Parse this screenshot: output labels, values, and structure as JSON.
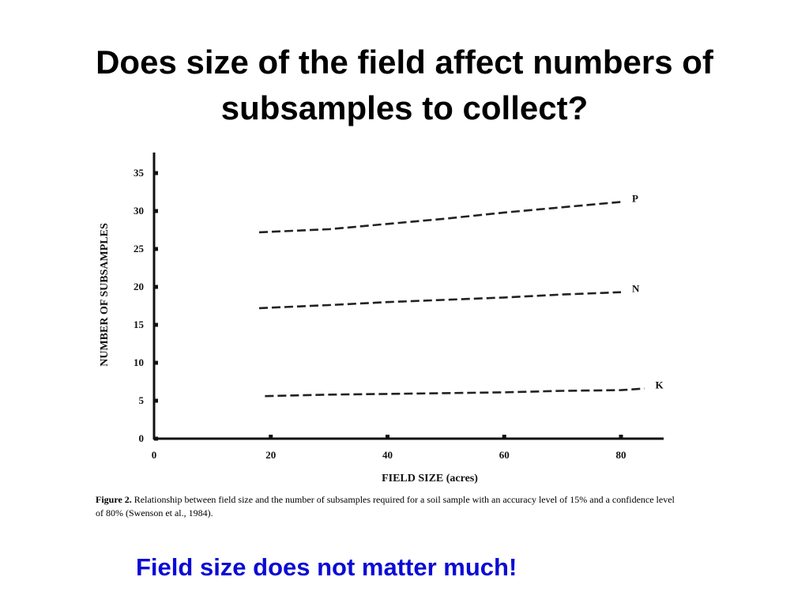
{
  "slide": {
    "title_line1": "Does size of the field affect numbers of",
    "title_line2": "subsamples to collect?",
    "caption_label": "Figure 2.",
    "caption_text": "Relationship between field size and the number of subsamples required for a soil sample with an accuracy level of 15% and a confidence level of 80% (Swenson et al., 1984).",
    "takeaway": "Field size does not matter much!",
    "takeaway_color": "#0b0bd6"
  },
  "chart_data": {
    "type": "line",
    "xlabel": "FIELD SIZE (acres)",
    "ylabel": "NUMBER OF SUBSAMPLES",
    "xlim": [
      0,
      88
    ],
    "ylim": [
      0,
      36
    ],
    "x_ticks": [
      0,
      20,
      40,
      60,
      80
    ],
    "y_ticks": [
      0,
      5,
      10,
      15,
      20,
      25,
      30,
      35
    ],
    "line_style": "dashed",
    "grid": false,
    "series": [
      {
        "name": "P",
        "x": [
          18,
          30,
          40,
          50,
          60,
          70,
          80
        ],
        "y": [
          27.2,
          27.6,
          28.3,
          29.0,
          29.8,
          30.5,
          31.2
        ]
      },
      {
        "name": "N",
        "x": [
          18,
          30,
          40,
          50,
          60,
          70,
          80
        ],
        "y": [
          17.2,
          17.6,
          18.0,
          18.3,
          18.6,
          19.0,
          19.3
        ]
      },
      {
        "name": "K",
        "x": [
          19,
          30,
          40,
          50,
          60,
          70,
          80,
          84
        ],
        "y": [
          5.6,
          5.8,
          5.9,
          6.0,
          6.1,
          6.3,
          6.4,
          6.6
        ]
      }
    ]
  }
}
